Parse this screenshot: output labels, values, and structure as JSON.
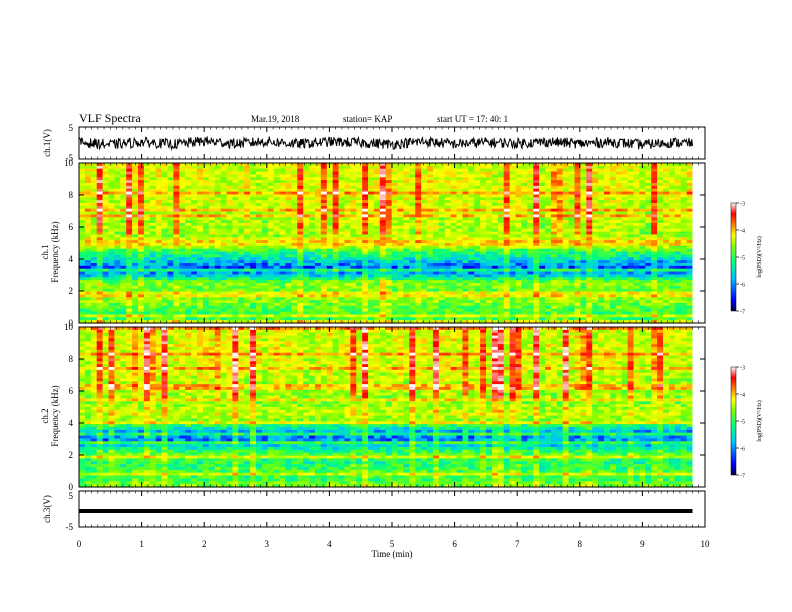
{
  "header": {
    "title": "VLF Spectra",
    "date": "Mar.19, 2018",
    "station": "station= KAP",
    "start_ut": "start UT =  17: 40: 1"
  },
  "colors": {
    "colormap": [
      "#000050",
      "#0000ff",
      "#00bfff",
      "#00ff7f",
      "#7fff00",
      "#ffff00",
      "#ff7f00",
      "#ff0000",
      "#ffffff"
    ]
  },
  "chart_data": [
    {
      "type": "line",
      "name": "ch1-waveform",
      "ylabel": "ch.1(V)",
      "ylim": [
        -5,
        5
      ],
      "yticks": [
        "5",
        "-5"
      ],
      "xlim": [
        0,
        10
      ],
      "description_values": {
        "x": [
          0.0,
          0.5,
          1.0,
          1.5,
          2.0,
          2.5,
          3.0,
          3.5,
          4.0,
          4.5,
          5.0,
          5.5,
          6.0,
          6.5,
          7.0,
          7.5,
          8.0,
          8.5,
          9.0,
          9.5,
          9.8
        ],
        "y": [
          0.2,
          -0.5,
          0.3,
          -0.4,
          0.6,
          -0.2,
          0.5,
          -0.3,
          0.4,
          0.1,
          -0.4,
          0.5,
          -0.3,
          0.2,
          -0.1,
          0.4,
          -0.2,
          0.3,
          -0.5,
          0.2,
          -0.1
        ]
      }
    },
    {
      "type": "heatmap",
      "name": "ch1-spectrogram",
      "ylabel": "ch.1\nFrequency (kHz)",
      "ylim": [
        0,
        10
      ],
      "yticks": [
        "0",
        "2",
        "4",
        "6",
        "8",
        "10"
      ],
      "xlim": [
        0,
        9.8
      ],
      "colorbar": {
        "label": "log(PSD)(V²/Hz)",
        "range": [
          -7,
          -3
        ],
        "ticks": [
          "-3",
          "-4",
          "-5",
          "-6",
          "-7"
        ]
      },
      "profile_log_psd": {
        "freq_khz": [
          0,
          0.5,
          1,
          1.5,
          2,
          2.5,
          3,
          3.5,
          4,
          4.5,
          5,
          5.5,
          6,
          7,
          8,
          9,
          10
        ],
        "value": [
          -5.2,
          -5.4,
          -5.2,
          -5.0,
          -5.2,
          -5.0,
          -6.0,
          -6.3,
          -5.8,
          -5.4,
          -4.3,
          -5.0,
          -5.0,
          -4.9,
          -4.8,
          -4.8,
          -4.8
        ]
      }
    },
    {
      "type": "heatmap",
      "name": "ch2-spectrogram",
      "ylabel": "ch.2\nFrequency (kHz)",
      "ylim": [
        0,
        10
      ],
      "yticks": [
        "0",
        "2",
        "4",
        "6",
        "8",
        "10"
      ],
      "xlim": [
        0,
        9.8
      ],
      "colorbar": {
        "label": "log(PSD)(V²/Hz)",
        "range": [
          -7,
          -3
        ],
        "ticks": [
          "-3",
          "-4",
          "-5",
          "-6",
          "-7"
        ]
      },
      "profile_log_psd": {
        "freq_khz": [
          0,
          0.5,
          1,
          1.5,
          2,
          2.5,
          3,
          3.5,
          4,
          4.5,
          5,
          5.5,
          6,
          7,
          8,
          9,
          10
        ],
        "value": [
          -5.0,
          -5.4,
          -5.3,
          -5.5,
          -5.2,
          -5.8,
          -6.2,
          -6.0,
          -5.2,
          -4.8,
          -4.9,
          -5.1,
          -5.0,
          -4.9,
          -4.8,
          -4.8,
          -4.8
        ]
      }
    },
    {
      "type": "line",
      "name": "ch3-waveform",
      "ylabel": "ch.3(V)",
      "ylim": [
        -5,
        5
      ],
      "yticks": [
        "5",
        "-5"
      ],
      "xlim": [
        0,
        10
      ],
      "xlabel": "Time (min)",
      "xticks": [
        "0",
        "1",
        "2",
        "3",
        "4",
        "5",
        "6",
        "7",
        "8",
        "9",
        "10"
      ],
      "x": [
        0,
        9.8
      ],
      "y": [
        0,
        0
      ]
    }
  ]
}
